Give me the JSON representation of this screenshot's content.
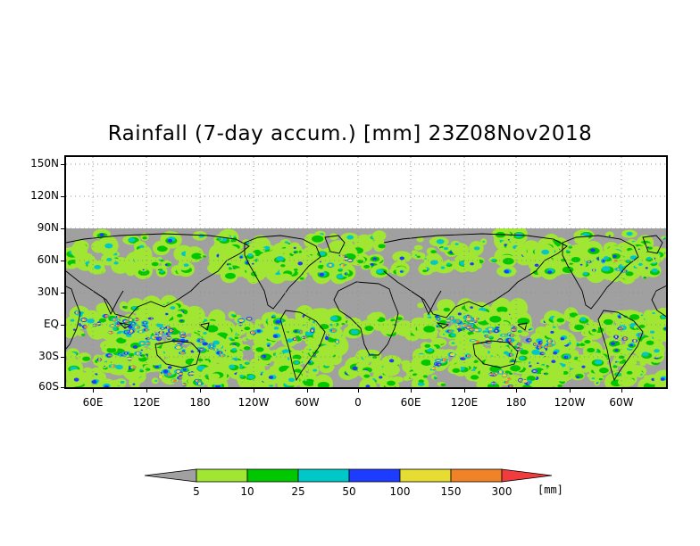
{
  "title": "Rainfall (7-day accum.) [mm] 23Z08Nov2018",
  "lat_labels": [
    "150N",
    "120N",
    "90N",
    "60N",
    "30N",
    "EQ",
    "30S",
    "60S"
  ],
  "lon_labels": [
    "60E",
    "120E",
    "180",
    "120W",
    "60W",
    "0",
    "60E",
    "120E",
    "180",
    "120W",
    "60W"
  ],
  "colorbar": {
    "labels": [
      "5",
      "10",
      "25",
      "50",
      "100",
      "150",
      "300"
    ],
    "units": "[mm]",
    "colors": {
      "below": "#a0a0a0",
      "bins": [
        "#a0e632",
        "#00c800",
        "#00c8c8",
        "#1e3cff",
        "#e6dc32",
        "#f08228"
      ],
      "above": "#f03c3c"
    }
  },
  "map_colors": {
    "background_land_sea": "#a0a0a0",
    "light_green": "#a0e632",
    "green": "#00c800",
    "cyan": "#00c8c8",
    "blue": "#1e3cff",
    "yellow": "#e6dc32",
    "orange": "#f08228",
    "coast": "#000000",
    "grid": "#909090"
  }
}
